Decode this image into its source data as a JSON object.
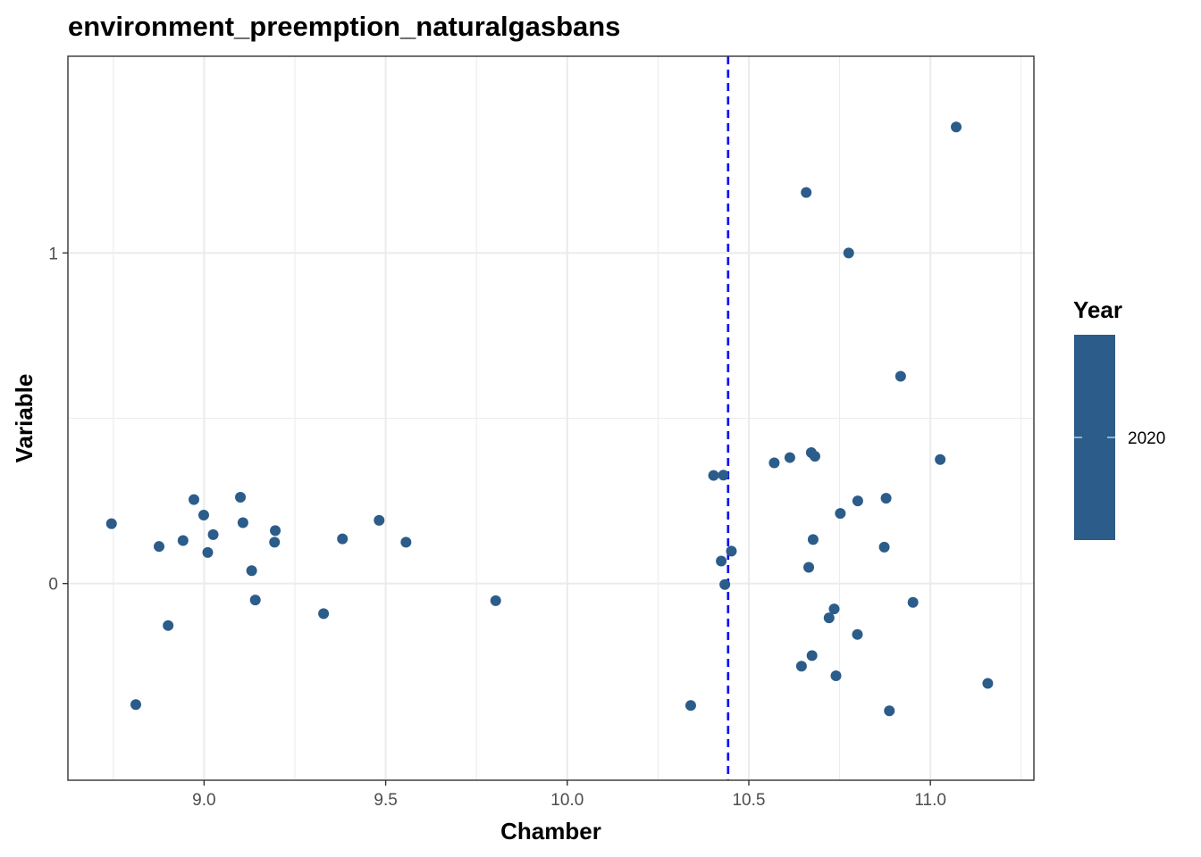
{
  "chart_data": {
    "type": "scatter",
    "title": "environment_preemption_naturalgasbans",
    "xlabel": "Chamber",
    "ylabel": "Variable",
    "xlim": [
      8.625,
      11.285
    ],
    "ylim": [
      -0.595,
      1.595
    ],
    "x_ticks": [
      9.0,
      9.5,
      10.0,
      10.5,
      11.0
    ],
    "x_tick_labels": [
      "9.0",
      "9.5",
      "10.0",
      "10.5",
      "11.0"
    ],
    "y_ticks": [
      0,
      1
    ],
    "y_tick_labels": [
      "0",
      "1"
    ],
    "x_minor_gridlines": [
      8.75,
      9.25,
      9.75,
      10.25,
      10.75,
      11.25
    ],
    "y_minor_gridlines": [
      0.5
    ],
    "grid": true,
    "vline": {
      "x": 10.443,
      "style": "dashed",
      "color": "#0000ff"
    },
    "point_color": "#2b5c8a",
    "legend": {
      "title": "Year",
      "label": "2020",
      "placement": "right",
      "color": "#2b5c8a"
    },
    "points": [
      {
        "x": 8.745,
        "y": 0.181
      },
      {
        "x": 8.812,
        "y": -0.366
      },
      {
        "x": 8.876,
        "y": 0.112
      },
      {
        "x": 8.901,
        "y": -0.127
      },
      {
        "x": 8.942,
        "y": 0.13
      },
      {
        "x": 8.972,
        "y": 0.254
      },
      {
        "x": 8.999,
        "y": 0.207
      },
      {
        "x": 9.01,
        "y": 0.094
      },
      {
        "x": 9.025,
        "y": 0.148
      },
      {
        "x": 9.1,
        "y": 0.261
      },
      {
        "x": 9.107,
        "y": 0.184
      },
      {
        "x": 9.131,
        "y": 0.039
      },
      {
        "x": 9.141,
        "y": -0.05
      },
      {
        "x": 9.194,
        "y": 0.125
      },
      {
        "x": 9.196,
        "y": 0.16
      },
      {
        "x": 9.329,
        "y": -0.091
      },
      {
        "x": 9.381,
        "y": 0.135
      },
      {
        "x": 9.482,
        "y": 0.191
      },
      {
        "x": 9.556,
        "y": 0.125
      },
      {
        "x": 9.803,
        "y": -0.052
      },
      {
        "x": 10.34,
        "y": -0.369
      },
      {
        "x": 10.403,
        "y": 0.327
      },
      {
        "x": 10.424,
        "y": 0.068
      },
      {
        "x": 10.43,
        "y": 0.328
      },
      {
        "x": 10.434,
        "y": -0.003
      },
      {
        "x": 10.452,
        "y": 0.098
      },
      {
        "x": 10.57,
        "y": 0.365
      },
      {
        "x": 10.613,
        "y": 0.381
      },
      {
        "x": 10.645,
        "y": -0.25
      },
      {
        "x": 10.658,
        "y": 1.183
      },
      {
        "x": 10.665,
        "y": 0.049
      },
      {
        "x": 10.672,
        "y": 0.396
      },
      {
        "x": 10.674,
        "y": -0.218
      },
      {
        "x": 10.677,
        "y": 0.133
      },
      {
        "x": 10.682,
        "y": 0.385
      },
      {
        "x": 10.721,
        "y": -0.104
      },
      {
        "x": 10.735,
        "y": -0.077
      },
      {
        "x": 10.74,
        "y": -0.279
      },
      {
        "x": 10.752,
        "y": 0.212
      },
      {
        "x": 10.775,
        "y": 1.0
      },
      {
        "x": 10.799,
        "y": -0.154
      },
      {
        "x": 10.8,
        "y": 0.25
      },
      {
        "x": 10.873,
        "y": 0.11
      },
      {
        "x": 10.878,
        "y": 0.258
      },
      {
        "x": 10.887,
        "y": -0.385
      },
      {
        "x": 10.918,
        "y": 0.627
      },
      {
        "x": 10.952,
        "y": -0.057
      },
      {
        "x": 11.027,
        "y": 0.375
      },
      {
        "x": 11.071,
        "y": 1.381
      },
      {
        "x": 11.158,
        "y": -0.302
      }
    ]
  }
}
